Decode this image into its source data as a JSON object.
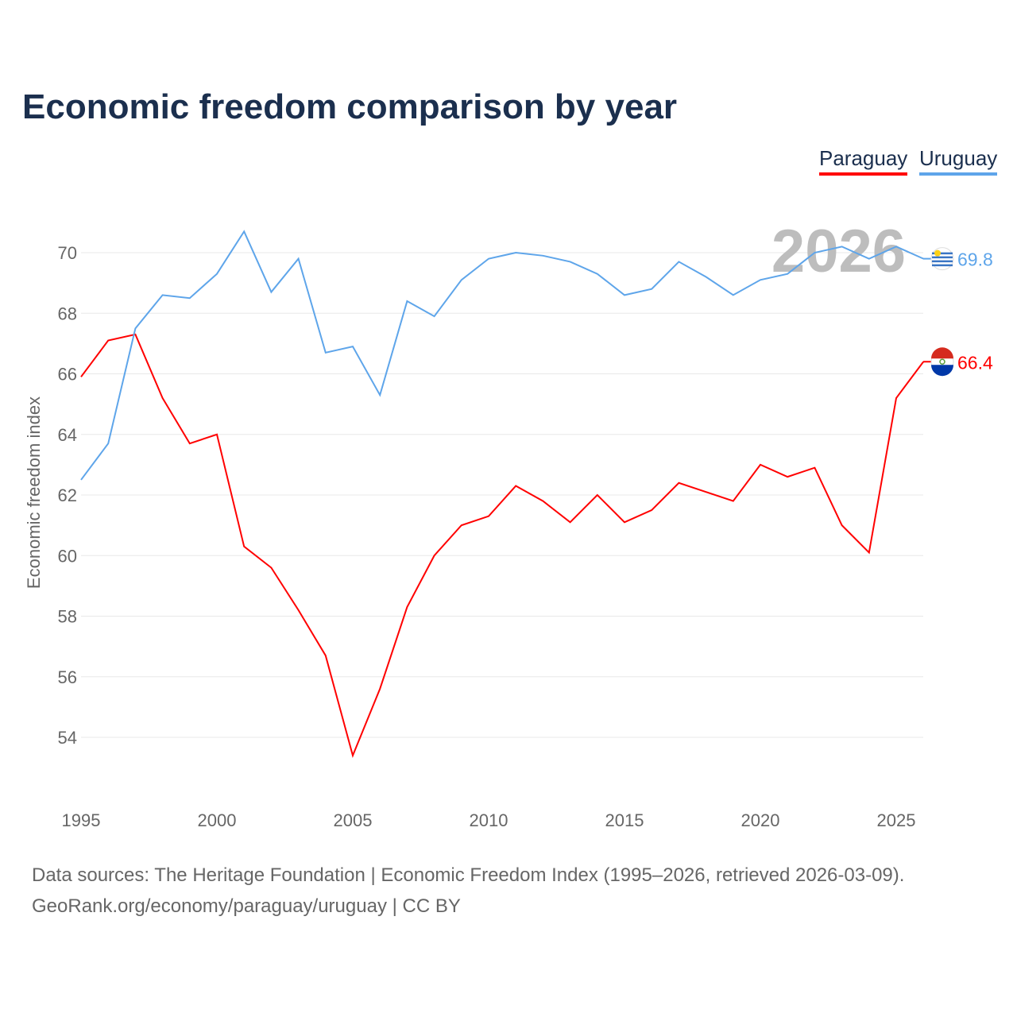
{
  "chart_data": {
    "type": "line",
    "title": "Economic freedom comparison by year",
    "xlabel": "",
    "ylabel": "Economic freedom index",
    "xlim": [
      1995,
      2026
    ],
    "ylim": [
      52,
      72
    ],
    "grid": true,
    "legend_placement": "top-right",
    "x_ticks": [
      1995,
      2000,
      2005,
      2010,
      2015,
      2020,
      2025
    ],
    "y_ticks": [
      54,
      56,
      58,
      60,
      62,
      64,
      66,
      68,
      70
    ],
    "watermark_year": "2026",
    "x": [
      1995,
      1996,
      1997,
      1998,
      1999,
      2000,
      2001,
      2002,
      2003,
      2004,
      2005,
      2006,
      2007,
      2008,
      2009,
      2010,
      2011,
      2012,
      2013,
      2014,
      2015,
      2016,
      2017,
      2018,
      2019,
      2020,
      2021,
      2022,
      2023,
      2024,
      2025,
      2026
    ],
    "series": [
      {
        "name": "Paraguay",
        "color": "#ff0000",
        "end_label": "66.4",
        "values": [
          65.9,
          67.1,
          67.3,
          65.2,
          63.7,
          64.0,
          60.3,
          59.6,
          58.2,
          56.7,
          53.4,
          55.6,
          58.3,
          60.0,
          61.0,
          61.3,
          62.3,
          61.8,
          61.1,
          62.0,
          61.1,
          61.5,
          62.4,
          62.1,
          61.8,
          63.0,
          62.6,
          62.9,
          61.0,
          60.1,
          65.2,
          66.4
        ]
      },
      {
        "name": "Uruguay",
        "color": "#5ea5ea",
        "end_label": "69.8",
        "values": [
          62.5,
          63.7,
          67.5,
          68.6,
          68.5,
          69.3,
          70.7,
          68.7,
          69.8,
          66.7,
          66.9,
          65.3,
          68.4,
          67.9,
          69.1,
          69.8,
          70.0,
          69.9,
          69.7,
          69.3,
          68.6,
          68.8,
          69.7,
          69.2,
          68.6,
          69.1,
          69.3,
          70.0,
          70.2,
          69.8,
          70.2,
          69.8
        ]
      }
    ]
  },
  "footer": {
    "sources": "Data sources: The Heritage Foundation | Economic Freedom Index (1995–2026, retrieved 2026-03-09).",
    "credit": "GeoRank.org/economy/paraguay/uruguay | CC BY"
  }
}
